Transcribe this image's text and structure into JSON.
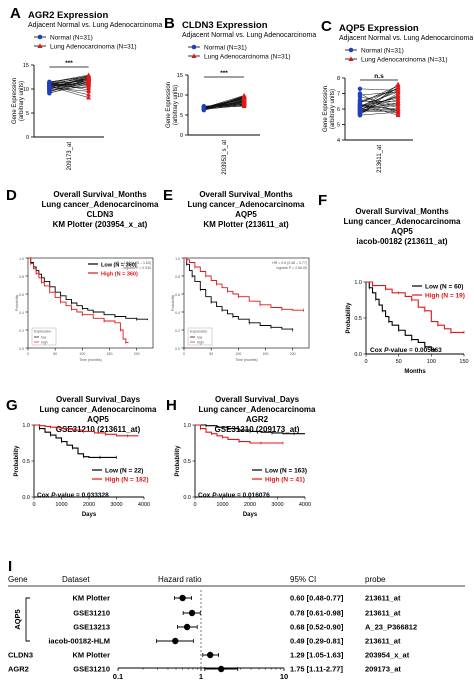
{
  "chart_data": [
    {
      "id": "A",
      "type": "scatter",
      "subtype": "paired",
      "panel_letter": "A",
      "title": "AGR2 Expression",
      "subtitle": "Adjacent Normal vs. Lung Adenocarcinoma",
      "legend": [
        "Normal (N=31)",
        "Lung Adenocarcinoma (N=31)"
      ],
      "ylabel": "Gene Expression\n(arbitrary units)",
      "xlabel": "209173_at",
      "yticks": [
        "0",
        "5",
        "10",
        "15"
      ],
      "ylim": [
        0,
        15
      ],
      "significance": "***",
      "colors": {
        "normal": "#1f3fbf",
        "tumor": "#e01818",
        "line": "#111111"
      },
      "normal": [
        9.2,
        9.5,
        9.8,
        10.0,
        10.1,
        10.3,
        10.4,
        10.5,
        10.6,
        10.7,
        10.8,
        10.9,
        11.0,
        11.0,
        11.1,
        11.2,
        11.3,
        11.4,
        9.6,
        9.9,
        10.2,
        10.6,
        10.9,
        11.3,
        9.4,
        10.0,
        10.8,
        11.5,
        9.1,
        10.4,
        10.7
      ],
      "tumor": [
        11.0,
        12.1,
        10.5,
        12.6,
        11.8,
        9.5,
        12.3,
        11.5,
        8.2,
        12.8,
        11.2,
        12.0,
        10.8,
        12.5,
        11.7,
        12.2,
        9.8,
        12.9,
        11.4,
        12.4,
        11.0,
        12.0,
        10.2,
        12.7,
        11.9,
        12.3,
        10.9,
        12.6,
        11.6,
        12.1,
        8.8
      ]
    },
    {
      "id": "B",
      "type": "scatter",
      "subtype": "paired",
      "panel_letter": "B",
      "title": "CLDN3 Expression",
      "subtitle": "Adjacent Normal vs. Lung Adenocarcinoma",
      "legend": [
        "Normal (N=31)",
        "Lung Adenocarcinoma (N=31)"
      ],
      "ylabel": "Gene Expression\n(arbitrary units)",
      "xlabel": "203953_s_at",
      "yticks": [
        "0",
        "5",
        "10",
        "15"
      ],
      "ylim": [
        0,
        15
      ],
      "significance": "***",
      "colors": {
        "normal": "#1f3fbf",
        "tumor": "#e01818",
        "line": "#111111"
      },
      "normal": [
        6.2,
        6.4,
        6.5,
        6.6,
        6.7,
        6.8,
        6.9,
        7.0,
        6.3,
        6.5,
        6.7,
        6.9,
        7.1,
        6.4,
        6.6,
        6.8,
        7.0,
        6.5,
        6.7,
        6.9,
        7.2,
        6.3,
        6.6,
        6.8,
        7.0,
        6.4,
        6.7,
        6.9,
        6.5,
        6.8,
        7.1
      ],
      "tumor": [
        8.5,
        9.2,
        7.8,
        9.6,
        8.9,
        7.2,
        9.4,
        8.1,
        9.8,
        8.7,
        7.5,
        9.1,
        8.3,
        9.7,
        8.0,
        9.3,
        7.6,
        9.5,
        8.6,
        9.0,
        7.9,
        9.4,
        8.4,
        9.9,
        8.8,
        7.4,
        9.2,
        8.2,
        9.6,
        8.5,
        7.7
      ]
    },
    {
      "id": "C",
      "type": "scatter",
      "subtype": "paired",
      "panel_letter": "C",
      "title": "AQP5 Expression",
      "subtitle": "Adjacent Normal vs. Lung Adenocarcinoma",
      "legend": [
        "Normal (N=31)",
        "Lung Adenocarcinoma (N=31)"
      ],
      "ylabel": "Gene Expression\n(arbitrary units)",
      "xlabel": "213611_at",
      "yticks": [
        "4",
        "5",
        "6",
        "7",
        "8"
      ],
      "ylim": [
        4,
        8
      ],
      "significance": "n.s",
      "colors": {
        "normal": "#1f3fbf",
        "tumor": "#e01818",
        "line": "#111111"
      },
      "normal": [
        5.6,
        5.8,
        6.0,
        6.1,
        6.2,
        5.9,
        6.3,
        6.5,
        5.7,
        6.0,
        6.4,
        6.8,
        5.8,
        6.1,
        7.0,
        5.9,
        6.2,
        6.6,
        5.7,
        6.0,
        6.3,
        7.3,
        5.8,
        6.1,
        6.4,
        5.9,
        6.2,
        6.9,
        5.6,
        6.0,
        6.5
      ],
      "tumor": [
        7.6,
        5.9,
        6.8,
        7.2,
        6.0,
        7.4,
        5.6,
        6.5,
        7.0,
        5.8,
        7.3,
        6.2,
        6.9,
        7.5,
        5.7,
        6.4,
        7.1,
        6.1,
        7.4,
        6.6,
        5.9,
        7.2,
        6.3,
        6.8,
        7.5,
        6.0,
        6.7,
        7.1,
        5.8,
        6.4,
        7.3
      ]
    },
    {
      "id": "D",
      "type": "line",
      "subtype": "kaplan-meier",
      "panel_letter": "D",
      "title_lines": [
        "Overall Survival_Months",
        "Lung cancer_Adenocarcinoma",
        "CLDN3",
        "KM Plotter (203954_x_at)"
      ],
      "stats": [
        "HR = 1.29 (1.05 – 1.63)",
        "logrank P = 0.034"
      ],
      "legend_box": [
        "Expression",
        "low",
        "high"
      ],
      "xlabel": "Time (months)",
      "ylabel": "Probability",
      "xlim": [
        0,
        230
      ],
      "ylim": [
        0,
        1
      ],
      "xticks": [
        "0",
        "50",
        "100",
        "150",
        "200"
      ],
      "yticks": [
        "0.0",
        "0.2",
        "0.4",
        "0.6",
        "0.8",
        "1.0"
      ],
      "series": [
        {
          "name": "Low (N = 360)",
          "color": "#000000",
          "x": [
            0,
            5,
            10,
            15,
            20,
            25,
            30,
            40,
            50,
            60,
            70,
            80,
            90,
            100,
            110,
            120,
            140,
            160,
            180,
            200,
            220
          ],
          "y": [
            1,
            0.95,
            0.9,
            0.86,
            0.82,
            0.78,
            0.74,
            0.68,
            0.62,
            0.58,
            0.54,
            0.5,
            0.47,
            0.44,
            0.42,
            0.4,
            0.37,
            0.35,
            0.33,
            0.32,
            0.31
          ]
        },
        {
          "name": "High (N = 360)",
          "color": "#e01818",
          "x": [
            0,
            5,
            10,
            15,
            20,
            25,
            30,
            40,
            50,
            60,
            70,
            80,
            90,
            100,
            120,
            140,
            160,
            170,
            175,
            180,
            185
          ],
          "y": [
            1,
            0.94,
            0.88,
            0.83,
            0.78,
            0.73,
            0.69,
            0.62,
            0.56,
            0.51,
            0.47,
            0.43,
            0.4,
            0.37,
            0.33,
            0.3,
            0.28,
            0.2,
            0.1,
            0.06,
            0.06
          ]
        }
      ]
    },
    {
      "id": "E",
      "type": "line",
      "subtype": "kaplan-meier",
      "panel_letter": "E",
      "title_lines": [
        "Overall Survival_Months",
        "Lung cancer_Adenocarcinoma",
        "AQP5",
        "KM Plotter (213611_at)"
      ],
      "stats": [
        "HR = 0.6 (0.48 – 0.77)",
        "logrank P = 2.5e-05"
      ],
      "legend_box": [
        "Expression",
        "low",
        "high"
      ],
      "xlabel": "Time (months)",
      "ylabel": "Probability",
      "xlim": [
        0,
        230
      ],
      "ylim": [
        0,
        1
      ],
      "xticks": [
        "0",
        "50",
        "100",
        "150",
        "200"
      ],
      "yticks": [
        "0.0",
        "0.2",
        "0.4",
        "0.6",
        "0.8",
        "1.0"
      ],
      "series": [
        {
          "name": "low",
          "color": "#000000",
          "x": [
            0,
            5,
            10,
            15,
            20,
            30,
            40,
            50,
            60,
            70,
            80,
            90,
            100,
            120,
            140,
            160,
            180,
            200
          ],
          "y": [
            1,
            0.93,
            0.86,
            0.8,
            0.74,
            0.65,
            0.57,
            0.51,
            0.46,
            0.42,
            0.38,
            0.35,
            0.32,
            0.28,
            0.25,
            0.23,
            0.21,
            0.2
          ]
        },
        {
          "name": "high",
          "color": "#e01818",
          "x": [
            0,
            5,
            10,
            20,
            30,
            40,
            50,
            60,
            70,
            80,
            90,
            100,
            120,
            140,
            160,
            180,
            200,
            220
          ],
          "y": [
            1,
            0.98,
            0.95,
            0.9,
            0.85,
            0.8,
            0.75,
            0.71,
            0.67,
            0.63,
            0.6,
            0.57,
            0.52,
            0.48,
            0.45,
            0.43,
            0.42,
            0.42
          ]
        }
      ]
    },
    {
      "id": "F",
      "type": "line",
      "subtype": "kaplan-meier",
      "panel_letter": "F",
      "title_lines": [
        "Overall Survival_Months",
        "Lung cancer_Adenocarcinoma",
        "AQP5",
        "iacob-00182 (213611_at)"
      ],
      "xlabel": "Months",
      "ylabel": "Probability",
      "xlim": [
        0,
        150
      ],
      "ylim": [
        0,
        1
      ],
      "xticks": [
        "0",
        "50",
        "100",
        "150"
      ],
      "yticks": [
        "0.0",
        "0.5",
        "1.0"
      ],
      "annotation_pre": "Cox ",
      "annotation_italic": "P",
      "annotation_post": "-value = 0.005863",
      "series": [
        {
          "name": "Low (N = 60)",
          "color": "#000000",
          "x": [
            0,
            5,
            10,
            15,
            20,
            25,
            30,
            35,
            40,
            50,
            60,
            70,
            80,
            90,
            100,
            105
          ],
          "y": [
            1,
            0.92,
            0.85,
            0.76,
            0.68,
            0.6,
            0.52,
            0.45,
            0.4,
            0.33,
            0.26,
            0.2,
            0.16,
            0.1,
            0.06,
            0.05
          ]
        },
        {
          "name": "High (N = 19)",
          "color": "#e01818",
          "x": [
            0,
            10,
            20,
            30,
            40,
            50,
            60,
            70,
            80,
            90,
            100,
            110,
            120,
            130,
            140,
            150
          ],
          "y": [
            1,
            0.95,
            0.95,
            0.9,
            0.85,
            0.85,
            0.8,
            0.75,
            0.65,
            0.6,
            0.45,
            0.4,
            0.35,
            0.3,
            0.3,
            0.3
          ]
        }
      ]
    },
    {
      "id": "G",
      "type": "line",
      "subtype": "kaplan-meier",
      "panel_letter": "G",
      "title_lines": [
        "Overall Survival_Days",
        "Lung cancer_Adenocarcinoma",
        "AQP5",
        "GSE31210 (213611_at)"
      ],
      "xlabel": "Days",
      "ylabel": "Probability",
      "xlim": [
        0,
        4000
      ],
      "ylim": [
        0,
        1
      ],
      "xticks": [
        "0",
        "1000",
        "2000",
        "3000",
        "4000"
      ],
      "yticks": [
        "0.0",
        "0.5",
        "1.0"
      ],
      "annotation_pre": "Cox ",
      "annotation_italic": "P",
      "annotation_post": "-value = 0.033328",
      "series": [
        {
          "name": "Low (N = 22)",
          "color": "#000000",
          "x": [
            0,
            200,
            400,
            600,
            800,
            1000,
            1200,
            1400,
            1600,
            1800,
            2000,
            2400,
            2800,
            3000
          ],
          "y": [
            1,
            0.95,
            0.9,
            0.86,
            0.82,
            0.77,
            0.72,
            0.68,
            0.6,
            0.56,
            0.55,
            0.55,
            0.55,
            0.55
          ]
        },
        {
          "name": "High (N = 182)",
          "color": "#e01818",
          "x": [
            0,
            200,
            400,
            600,
            800,
            1000,
            1400,
            1800,
            2200,
            2600,
            3000,
            3400,
            3800
          ],
          "y": [
            1,
            0.99,
            0.98,
            0.97,
            0.96,
            0.95,
            0.93,
            0.91,
            0.89,
            0.87,
            0.85,
            0.85,
            0.85
          ]
        }
      ]
    },
    {
      "id": "H",
      "type": "line",
      "subtype": "kaplan-meier",
      "panel_letter": "H",
      "title_lines": [
        "Overall Survival_Days",
        "Lung cancer_Adenocarcinoma",
        "AGR2",
        "GSE31210 (209173_at)"
      ],
      "xlabel": "Days",
      "ylabel": "Probability",
      "xlim": [
        0,
        4000
      ],
      "ylim": [
        0,
        1
      ],
      "xticks": [
        "0",
        "1000",
        "2000",
        "3000",
        "4000"
      ],
      "yticks": [
        "0.0",
        "0.5",
        "1.0"
      ],
      "annotation_pre": "Cox ",
      "annotation_italic": "P",
      "annotation_post": "-value = 0.016076",
      "series": [
        {
          "name": "Low (N = 163)",
          "color": "#000000",
          "x": [
            0,
            400,
            800,
            1200,
            1600,
            2000,
            2400,
            2800,
            3200,
            3600,
            4000
          ],
          "y": [
            1,
            0.99,
            0.97,
            0.95,
            0.93,
            0.91,
            0.9,
            0.89,
            0.88,
            0.88,
            0.88
          ]
        },
        {
          "name": "High (N = 41)",
          "color": "#e01818",
          "x": [
            0,
            200,
            400,
            600,
            800,
            1000,
            1200,
            1600,
            2000,
            2400,
            2800,
            3200
          ],
          "y": [
            1,
            0.95,
            0.9,
            0.88,
            0.85,
            0.83,
            0.8,
            0.77,
            0.75,
            0.75,
            0.75,
            0.75
          ]
        }
      ]
    },
    {
      "id": "I",
      "type": "scatter",
      "subtype": "forest",
      "panel_letter": "I",
      "headers": {
        "gene": "Gene",
        "dataset": "Dataset",
        "hr": "Hazard ratio",
        "ci": "95% CI",
        "probe": "probe"
      },
      "xscale": "log",
      "xlim": [
        0.1,
        10
      ],
      "xticks": [
        "0.1",
        "1",
        "10"
      ],
      "rows": [
        {
          "gene": "AQP5",
          "dataset": "KM Plotter",
          "hr": 0.6,
          "lo": 0.48,
          "hi": 0.77,
          "ci": "0.60 [0.48-0.77]",
          "probe": "213611_at"
        },
        {
          "gene": "AQP5",
          "dataset": "GSE31210",
          "hr": 0.78,
          "lo": 0.61,
          "hi": 0.98,
          "ci": "0.78 [0.61-0.98]",
          "probe": "213611_at"
        },
        {
          "gene": "AQP5",
          "dataset": "GSE13213",
          "hr": 0.68,
          "lo": 0.52,
          "hi": 0.9,
          "ci": "0.68 [0.52-0.90]",
          "probe": "A_23_P366812"
        },
        {
          "gene": "AQP5",
          "dataset": "iacob-00182-HLM",
          "hr": 0.49,
          "lo": 0.29,
          "hi": 0.81,
          "ci": "0.49 [0.29-0.81]",
          "probe": "213611_at"
        },
        {
          "gene": "CLDN3",
          "dataset": "KM Plotter",
          "hr": 1.29,
          "lo": 1.05,
          "hi": 1.63,
          "ci": "1.29 [1.05-1.63]",
          "probe": "203954_x_at"
        },
        {
          "gene": "AGR2",
          "dataset": "GSE31210",
          "hr": 1.75,
          "lo": 1.11,
          "hi": 2.77,
          "ci": "1.75 [1.11-2.77]",
          "probe": "209173_at"
        }
      ],
      "gene_group": "AQP5"
    }
  ]
}
